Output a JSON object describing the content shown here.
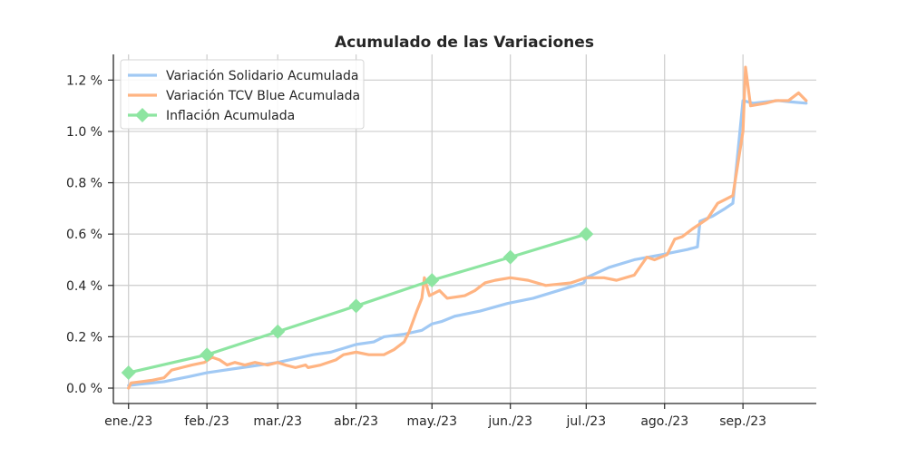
{
  "chart_data": {
    "type": "line",
    "title": "Acumulado de las Variaciones",
    "xlabel": "",
    "ylabel": "",
    "y_unit": "%",
    "ylim": [
      -0.06,
      1.3
    ],
    "y_ticks": [
      0.0,
      0.2,
      0.4,
      0.6,
      0.8,
      1.0,
      1.2
    ],
    "y_tick_labels": [
      "0.0 %",
      "0.2 %",
      "0.4 %",
      "0.6 %",
      "0.8 %",
      "1.0 %",
      "1.2 %"
    ],
    "x_ticks": [
      "2023-01-01",
      "2023-02-01",
      "2023-03-01",
      "2023-04-01",
      "2023-05-01",
      "2023-06-01",
      "2023-07-01",
      "2023-08-01",
      "2023-09-01"
    ],
    "x_tick_labels": [
      "ene./23",
      "feb./23",
      "mar./23",
      "abr./23",
      "may./23",
      "jun./23",
      "jul./23",
      "ago./23",
      "sep./23"
    ],
    "grid": true,
    "legend_position": "top-left",
    "series": [
      {
        "name": "Variación Solidario Acumulada",
        "color": "#a1c9f4",
        "marker": "none",
        "points": [
          [
            "2023-01-01",
            0.01
          ],
          [
            "2023-01-05",
            0.015
          ],
          [
            "2023-01-10",
            0.02
          ],
          [
            "2023-01-15",
            0.025
          ],
          [
            "2023-01-20",
            0.035
          ],
          [
            "2023-01-25",
            0.045
          ],
          [
            "2023-02-01",
            0.06
          ],
          [
            "2023-02-08",
            0.07
          ],
          [
            "2023-02-15",
            0.08
          ],
          [
            "2023-02-22",
            0.09
          ],
          [
            "2023-03-01",
            0.1
          ],
          [
            "2023-03-08",
            0.115
          ],
          [
            "2023-03-15",
            0.13
          ],
          [
            "2023-03-22",
            0.14
          ],
          [
            "2023-04-01",
            0.17
          ],
          [
            "2023-04-08",
            0.18
          ],
          [
            "2023-04-12",
            0.2
          ],
          [
            "2023-04-20",
            0.21
          ],
          [
            "2023-04-27",
            0.225
          ],
          [
            "2023-05-01",
            0.25
          ],
          [
            "2023-05-05",
            0.26
          ],
          [
            "2023-05-10",
            0.28
          ],
          [
            "2023-05-20",
            0.3
          ],
          [
            "2023-05-31",
            0.33
          ],
          [
            "2023-06-10",
            0.35
          ],
          [
            "2023-06-20",
            0.38
          ],
          [
            "2023-06-30",
            0.41
          ],
          [
            "2023-07-01",
            0.43
          ],
          [
            "2023-07-10",
            0.47
          ],
          [
            "2023-07-20",
            0.5
          ],
          [
            "2023-07-31",
            0.52
          ],
          [
            "2023-08-10",
            0.54
          ],
          [
            "2023-08-14",
            0.55
          ],
          [
            "2023-08-15",
            0.65
          ],
          [
            "2023-08-20",
            0.67
          ],
          [
            "2023-08-25",
            0.7
          ],
          [
            "2023-08-28",
            0.72
          ],
          [
            "2023-09-01",
            1.12
          ],
          [
            "2023-09-05",
            1.11
          ],
          [
            "2023-09-10",
            1.115
          ],
          [
            "2023-09-15",
            1.12
          ],
          [
            "2023-09-20",
            1.115
          ],
          [
            "2023-09-26",
            1.11
          ]
        ]
      },
      {
        "name": "Variación TCV Blue Acumulada",
        "color": "#ffb482",
        "marker": "none",
        "points": [
          [
            "2023-01-01",
            0.0
          ],
          [
            "2023-01-02",
            0.02
          ],
          [
            "2023-01-06",
            0.025
          ],
          [
            "2023-01-10",
            0.03
          ],
          [
            "2023-01-15",
            0.04
          ],
          [
            "2023-01-18",
            0.07
          ],
          [
            "2023-01-22",
            0.08
          ],
          [
            "2023-01-26",
            0.09
          ],
          [
            "2023-01-31",
            0.1
          ],
          [
            "2023-02-03",
            0.12
          ],
          [
            "2023-02-06",
            0.11
          ],
          [
            "2023-02-09",
            0.09
          ],
          [
            "2023-02-12",
            0.1
          ],
          [
            "2023-02-16",
            0.09
          ],
          [
            "2023-02-20",
            0.1
          ],
          [
            "2023-02-25",
            0.09
          ],
          [
            "2023-03-01",
            0.1
          ],
          [
            "2023-03-04",
            0.09
          ],
          [
            "2023-03-08",
            0.08
          ],
          [
            "2023-03-12",
            0.09
          ],
          [
            "2023-03-13",
            0.08
          ],
          [
            "2023-03-18",
            0.09
          ],
          [
            "2023-03-24",
            0.11
          ],
          [
            "2023-03-27",
            0.13
          ],
          [
            "2023-04-01",
            0.14
          ],
          [
            "2023-04-06",
            0.13
          ],
          [
            "2023-04-12",
            0.13
          ],
          [
            "2023-04-16",
            0.15
          ],
          [
            "2023-04-20",
            0.18
          ],
          [
            "2023-04-22",
            0.22
          ],
          [
            "2023-04-25",
            0.3
          ],
          [
            "2023-04-27",
            0.35
          ],
          [
            "2023-04-28",
            0.43
          ],
          [
            "2023-04-30",
            0.36
          ],
          [
            "2023-05-04",
            0.38
          ],
          [
            "2023-05-07",
            0.35
          ],
          [
            "2023-05-14",
            0.36
          ],
          [
            "2023-05-18",
            0.38
          ],
          [
            "2023-05-22",
            0.41
          ],
          [
            "2023-05-26",
            0.42
          ],
          [
            "2023-06-01",
            0.43
          ],
          [
            "2023-06-08",
            0.42
          ],
          [
            "2023-06-15",
            0.4
          ],
          [
            "2023-06-25",
            0.41
          ],
          [
            "2023-07-01",
            0.43
          ],
          [
            "2023-07-08",
            0.43
          ],
          [
            "2023-07-13",
            0.42
          ],
          [
            "2023-07-20",
            0.44
          ],
          [
            "2023-07-25",
            0.51
          ],
          [
            "2023-07-28",
            0.5
          ],
          [
            "2023-08-02",
            0.52
          ],
          [
            "2023-08-05",
            0.58
          ],
          [
            "2023-08-08",
            0.59
          ],
          [
            "2023-08-12",
            0.62
          ],
          [
            "2023-08-18",
            0.66
          ],
          [
            "2023-08-22",
            0.72
          ],
          [
            "2023-08-26",
            0.74
          ],
          [
            "2023-08-28",
            0.75
          ],
          [
            "2023-09-01",
            1.0
          ],
          [
            "2023-09-02",
            1.25
          ],
          [
            "2023-09-04",
            1.1
          ],
          [
            "2023-09-10",
            1.11
          ],
          [
            "2023-09-14",
            1.12
          ],
          [
            "2023-09-19",
            1.12
          ],
          [
            "2023-09-23",
            1.15
          ],
          [
            "2023-09-26",
            1.12
          ]
        ]
      },
      {
        "name": "Inflación Acumulada",
        "color": "#8de5a1",
        "marker": "diamond",
        "points": [
          [
            "2023-01-01",
            0.06
          ],
          [
            "2023-02-01",
            0.13
          ],
          [
            "2023-03-01",
            0.22
          ],
          [
            "2023-04-01",
            0.32
          ],
          [
            "2023-05-01",
            0.42
          ],
          [
            "2023-06-01",
            0.51
          ],
          [
            "2023-07-01",
            0.6
          ]
        ]
      }
    ]
  }
}
